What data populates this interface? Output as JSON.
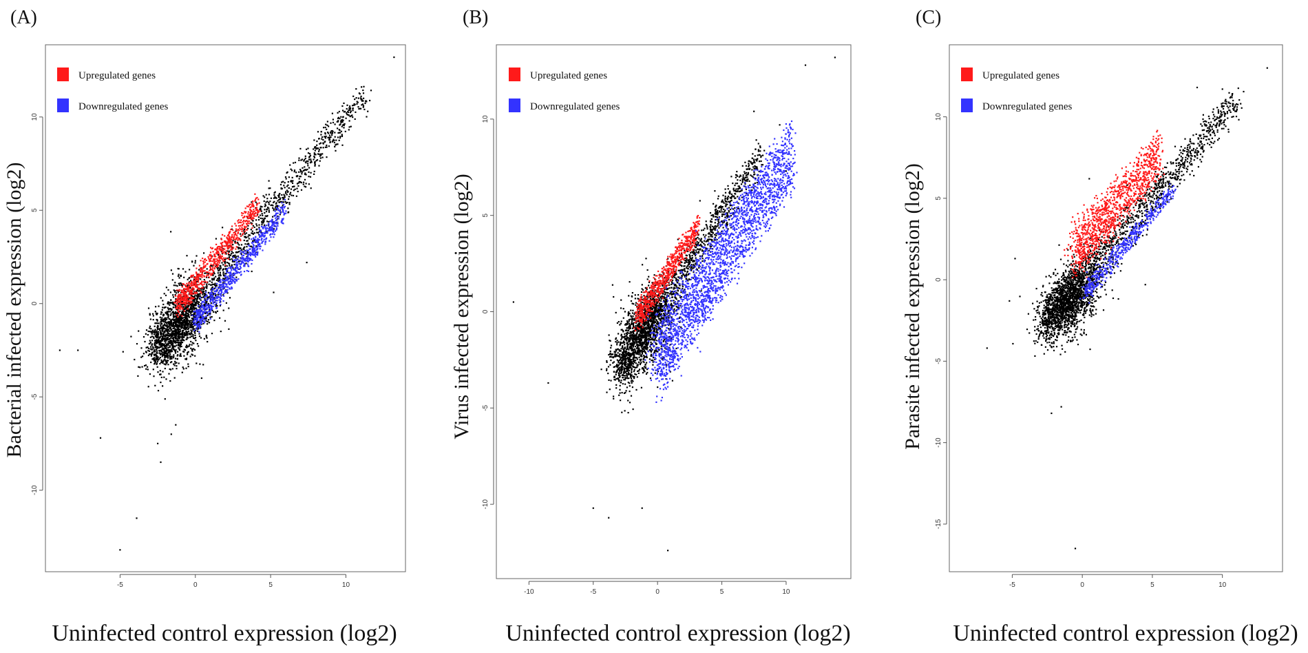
{
  "chart_data": [
    {
      "type": "scatter",
      "panel_label": "(A)",
      "xlabel": "Uninfected control expression (log2)",
      "ylabel": "Bacterial infected expression (log2)",
      "xlim": [
        -9.5,
        13.5
      ],
      "ylim": [
        -14,
        13.5
      ],
      "xticks": [
        -5,
        0,
        5,
        10
      ],
      "yticks": [
        -10,
        -5,
        0,
        5,
        10
      ],
      "grid": false,
      "legend_position": "top-left",
      "legend": [
        {
          "label": "Upregulated genes",
          "color": "#ff1a1a"
        },
        {
          "label": "Downregulated genes",
          "color": "#3333ff"
        }
      ],
      "series": [
        {
          "name": "Upregulated genes",
          "color": "#ff1a1a",
          "cloud": {
            "x_range": [
              -1.2,
              4.2
            ],
            "y_offset": [
              0.5,
              1.6
            ],
            "width": 0.4,
            "count": 700
          }
        },
        {
          "name": "Downregulated genes",
          "color": "#3333ff",
          "cloud": {
            "x_range": [
              0,
              6.0
            ],
            "y_offset": [
              -1.4,
              -0.5
            ],
            "width": 0.4,
            "count": 700
          }
        },
        {
          "color": "#000000",
          "cloud": {
            "x_range": [
              -2.5,
              11.3
            ],
            "y_offset": [
              -0.6,
              0.6
            ],
            "width": 1.0,
            "count": 2600,
            "center": [
              -1.0,
              -1.0
            ]
          }
        }
      ],
      "outliers": [
        [
          -9,
          -2.5
        ],
        [
          -7.8,
          -2.5
        ],
        [
          -6.3,
          -7.2
        ],
        [
          -5,
          -13.2
        ],
        [
          -3.9,
          -11.5
        ],
        [
          -2.3,
          -8.5
        ],
        [
          -1.3,
          -6.5
        ],
        [
          -1.6,
          -7
        ],
        [
          -2.5,
          -7.5
        ],
        [
          13.2,
          13.2
        ],
        [
          7.4,
          2.2
        ],
        [
          5.2,
          0.6
        ]
      ]
    },
    {
      "type": "scatter",
      "panel_label": "(B)",
      "xlabel": "Uninfected control expression (log2)",
      "ylabel": "Virus infected expression (log2)",
      "xlim": [
        -12,
        14.5
      ],
      "ylim": [
        -13.5,
        13.5
      ],
      "xticks": [
        -10,
        -5,
        0,
        5,
        10
      ],
      "yticks": [
        -10,
        -5,
        0,
        5,
        10
      ],
      "grid": false,
      "legend_position": "top-left",
      "legend": [
        {
          "label": "Upregulated genes",
          "color": "#ff1a1a"
        },
        {
          "label": "Downregulated genes",
          "color": "#3333ff"
        }
      ],
      "series": [
        {
          "name": "Upregulated genes",
          "color": "#ff1a1a",
          "cloud": {
            "x_range": [
              -1.5,
              3.2
            ],
            "y_offset": [
              0.7,
              1.8
            ],
            "width": 0.4,
            "count": 700
          }
        },
        {
          "name": "Downregulated genes",
          "color": "#3333ff",
          "cloud": {
            "x_range": [
              0,
              10.5
            ],
            "y_offset": [
              -4.0,
              -0.6
            ],
            "width": 0.9,
            "count": 2400
          }
        },
        {
          "color": "#000000",
          "cloud": {
            "x_range": [
              -3.0,
              8.0
            ],
            "y_offset": [
              -0.5,
              0.6
            ],
            "width": 1.1,
            "count": 2600,
            "center": [
              -1.0,
              -1.0
            ]
          }
        }
      ],
      "outliers": [
        [
          -11.2,
          0.5
        ],
        [
          -8.5,
          -3.7
        ],
        [
          -5,
          -10.2
        ],
        [
          -3.8,
          -10.7
        ],
        [
          0.8,
          -12.4
        ],
        [
          -1.2,
          -10.2
        ],
        [
          7.5,
          10.4
        ],
        [
          9.5,
          9.7
        ],
        [
          11.5,
          12.8
        ],
        [
          13.8,
          13.2
        ],
        [
          10,
          7.3
        ],
        [
          5,
          4.7
        ]
      ]
    },
    {
      "type": "scatter",
      "panel_label": "(C)",
      "xlabel": "Uninfected control expression (log2)",
      "ylabel": "Parasite infected expression (log2)",
      "xlim": [
        -9,
        13.8
      ],
      "ylim": [
        -17.5,
        14
      ],
      "xticks": [
        -5,
        0,
        5,
        10
      ],
      "yticks": [
        -15,
        -10,
        -5,
        0,
        5,
        10
      ],
      "grid": false,
      "legend_position": "top-left",
      "legend": [
        {
          "label": "Upregulated genes",
          "color": "#ff1a1a"
        },
        {
          "label": "Downregulated genes",
          "color": "#3333ff"
        }
      ],
      "series": [
        {
          "name": "Upregulated genes",
          "color": "#ff1a1a",
          "cloud": {
            "x_range": [
              -0.5,
              5.5
            ],
            "y_offset": [
              0.8,
              3.5
            ],
            "width": 0.8,
            "count": 1100
          }
        },
        {
          "name": "Downregulated genes",
          "color": "#3333ff",
          "cloud": {
            "x_range": [
              0.2,
              6.5
            ],
            "y_offset": [
              -1.4,
              -0.5
            ],
            "width": 0.4,
            "count": 500
          }
        },
        {
          "color": "#000000",
          "cloud": {
            "x_range": [
              -2.5,
              11.0
            ],
            "y_offset": [
              -0.6,
              0.7
            ],
            "width": 1.1,
            "count": 2800,
            "center": [
              -0.8,
              -1.2
            ]
          }
        }
      ],
      "outliers": [
        [
          -6.8,
          -4.2
        ],
        [
          -5.2,
          -1.3
        ],
        [
          -4.8,
          1.3
        ],
        [
          -2.2,
          -8.2
        ],
        [
          -1.5,
          -7.8
        ],
        [
          -0.5,
          -16.5
        ],
        [
          8.2,
          11.8
        ],
        [
          13.2,
          13
        ],
        [
          3.2,
          5.8
        ],
        [
          2.1,
          2.5
        ],
        [
          0.5,
          6.2
        ],
        [
          4.5,
          -0.3
        ]
      ]
    }
  ]
}
